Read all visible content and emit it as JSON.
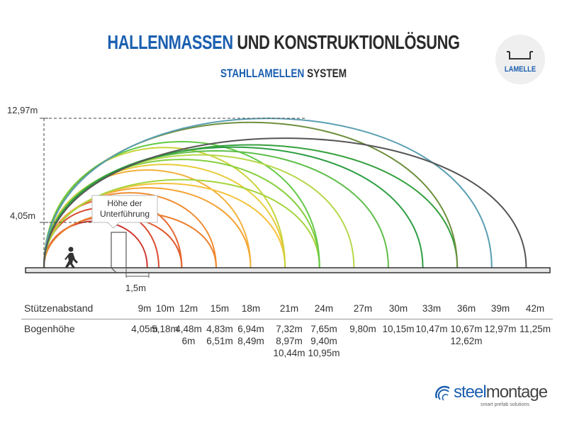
{
  "title": {
    "part1": "HALLENMASSEN",
    "part2": "UND KONSTRUKTIONLÖSUNG"
  },
  "subtitle": {
    "part1": "STAHLLAMELLEN",
    "part2": "SYSTEM"
  },
  "badge": {
    "label": "LAMELLE",
    "icon": "lamelle-profile-icon"
  },
  "diagram": {
    "height_max_label": "12,97m",
    "height_min_label": "4,05m",
    "callout": "Höhe der\nUnterführung",
    "clearance_label": "1,5m",
    "arches": [
      {
        "span": 9,
        "height": 4.05,
        "color": "#d0342c"
      },
      {
        "span": 10,
        "height": 5.18,
        "color": "#db4a2f"
      },
      {
        "span": 12,
        "height": 4.48,
        "color": "#e05a2e"
      },
      {
        "span": 12,
        "height": 6.0,
        "color": "#e5682f"
      },
      {
        "span": 15,
        "height": 4.83,
        "color": "#ec7f2e"
      },
      {
        "span": 15,
        "height": 6.51,
        "color": "#f08c30"
      },
      {
        "span": 18,
        "height": 6.94,
        "color": "#f5a334"
      },
      {
        "span": 18,
        "height": 8.49,
        "color": "#f2b13a"
      },
      {
        "span": 21,
        "height": 7.32,
        "color": "#f4c23b"
      },
      {
        "span": 21,
        "height": 8.97,
        "color": "#e8cc3a"
      },
      {
        "span": 21,
        "height": 10.44,
        "color": "#c9d43c"
      },
      {
        "span": 24,
        "height": 7.65,
        "color": "#a6d43e"
      },
      {
        "span": 24,
        "height": 9.4,
        "color": "#86cf3f"
      },
      {
        "span": 24,
        "height": 10.95,
        "color": "#62c945"
      },
      {
        "span": 27,
        "height": 9.8,
        "color": "#b6d84a"
      },
      {
        "span": 30,
        "height": 10.15,
        "color": "#5fbf4a"
      },
      {
        "span": 33,
        "height": 10.47,
        "color": "#2e9e44"
      },
      {
        "span": 36,
        "height": 10.67,
        "color": "#35a03d"
      },
      {
        "span": 36,
        "height": 12.62,
        "color": "#6e8f3d"
      },
      {
        "span": 39,
        "height": 12.97,
        "color": "#5a9fb2"
      },
      {
        "span": 42,
        "height": 11.25,
        "color": "#555555"
      }
    ]
  },
  "table": {
    "row1_label": "Stützenabstand",
    "row2_label": "Bogenhöhe",
    "columns": [
      {
        "span": "9m",
        "heights": "4,05m"
      },
      {
        "span": "10m",
        "heights": "5,18m"
      },
      {
        "span": "12m",
        "heights": "4,48m\n6m"
      },
      {
        "span": "15m",
        "heights": "4,83m\n6,51m"
      },
      {
        "span": "18m",
        "heights": "6,94m\n8,49m"
      },
      {
        "span": "21m",
        "heights": "7,32m\n8,97m\n10,44m"
      },
      {
        "span": "24m",
        "heights": "7,65m\n9,40m\n10,95m"
      },
      {
        "span": "27m",
        "heights": "9,80m"
      },
      {
        "span": "30m",
        "heights": "10,15m"
      },
      {
        "span": "33m",
        "heights": "10,47m"
      },
      {
        "span": "36m",
        "heights": "10,67m\n12,62m"
      },
      {
        "span": "39m",
        "heights": "12,97m"
      },
      {
        "span": "42m",
        "heights": "11,25m"
      }
    ]
  },
  "logo": {
    "steel": "steel",
    "montage": "montage",
    "tagline": "smart prefab solutions"
  }
}
